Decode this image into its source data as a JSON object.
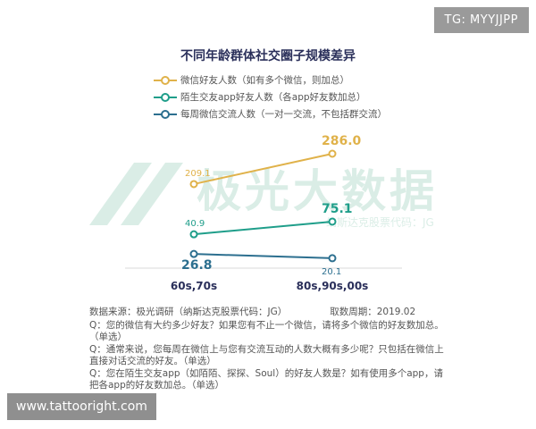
{
  "badges": {
    "tg": "TG: MYYJJPP",
    "url": "www.tattooright.com"
  },
  "watermark": {
    "text": "极光大数据",
    "sub": "纳斯达克股票代码：JG"
  },
  "colors": {
    "wechat": "#e0b24a",
    "app": "#1f9e8a",
    "weekly": "#2c6f8f"
  },
  "chart_data": {
    "type": "line",
    "title": "不同年龄群体社交圈子规模差异",
    "categories": [
      "60s,70s",
      "80s,90s,00s"
    ],
    "series": [
      {
        "name": "微信好友人数（如有多个微信，则加总）",
        "values": [
          209.1,
          286.0
        ],
        "labels": [
          "209.1",
          "286.0"
        ]
      },
      {
        "name": "陌生交友app好友人数（各app好友数加总）",
        "values": [
          40.9,
          75.1
        ],
        "labels": [
          "40.9",
          "75.1"
        ]
      },
      {
        "name": "每周微信交流人数（一对一交流，不包括群交流）",
        "values": [
          26.8,
          20.1
        ],
        "labels": [
          "26.8",
          "20.1"
        ]
      }
    ],
    "xlabel": "",
    "ylabel": "",
    "ylim": [
      0,
      300
    ],
    "grid": false,
    "legend": "top-left"
  },
  "footer": {
    "source": "数据来源：极光调研（纳斯达克股票代码：JG）",
    "period": "取数周期：2019.02",
    "q1": "Q：您的微信有大约多少好友？如果您有不止一个微信，请将多个微信的好友数加总。（单选）",
    "q2": "Q：通常来说，您每周在微信上与您有交流互动的人数大概有多少呢？只包括在微信上直接对话交流的好友。（单选）",
    "q3": "Q：您在陌生交友app（如陌陌、探探、Soul）的好友人数是？如有使用多个app，请把各app的好友数加总。（单选）"
  }
}
